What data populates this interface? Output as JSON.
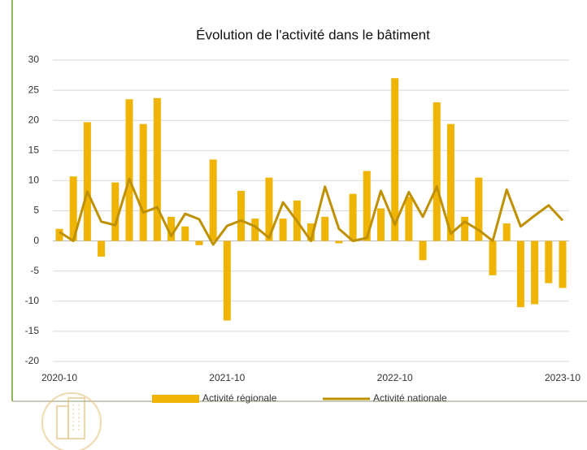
{
  "chart_data": {
    "type": "combo",
    "title": "Évolution de l'activité dans le bâtiment",
    "categories": [
      "2020-10",
      null,
      null,
      null,
      null,
      null,
      null,
      null,
      null,
      null,
      null,
      null,
      "2021-10",
      null,
      null,
      null,
      null,
      null,
      null,
      null,
      null,
      null,
      null,
      null,
      "2022-10",
      null,
      null,
      null,
      null,
      null,
      null,
      null,
      null,
      null,
      null,
      null,
      "2023-10"
    ],
    "series": [
      {
        "name": "Activité régionale",
        "type": "bar",
        "color": "#efb404",
        "values": [
          2.0,
          10.7,
          19.7,
          -2.6,
          9.7,
          23.5,
          19.4,
          23.7,
          4.0,
          2.4,
          -0.7,
          13.5,
          -13.2,
          8.3,
          3.7,
          10.5,
          3.7,
          6.7,
          2.9,
          4.0,
          -0.4,
          7.8,
          11.6,
          5.4,
          27.0,
          7.3,
          -3.2,
          23.0,
          19.4,
          4.0,
          10.5,
          -5.7,
          2.9,
          -11.0,
          -10.5,
          -7.0,
          -7.8
        ]
      },
      {
        "name": "Activité nationale",
        "type": "line",
        "color": "#bf9000",
        "values": [
          1.5,
          0,
          8.2,
          3.2,
          2.6,
          10.3,
          4.7,
          5.6,
          0.8,
          4.5,
          3.6,
          -0.6,
          2.5,
          3.4,
          2.4,
          0.5,
          6.4,
          3.3,
          0,
          9.0,
          2.0,
          0,
          0.5,
          8.3,
          2.7,
          8.1,
          4.0,
          9.0,
          1.2,
          3.2,
          1.8,
          0,
          8.5,
          2.4,
          4.2,
          5.9,
          3.4
        ]
      }
    ],
    "ylim": [
      -20,
      30
    ],
    "yticks": [
      -20,
      -15,
      -10,
      -5,
      0,
      5,
      10,
      15,
      20,
      25,
      30
    ],
    "grid": true,
    "legend": "bottom"
  }
}
